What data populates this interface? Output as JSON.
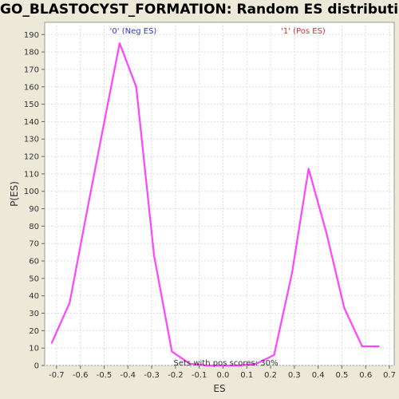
{
  "chart_data": {
    "type": "line",
    "title": "GO_BLASTOCYST_FORMATION: Random ES distribution",
    "xlabel": "ES",
    "ylabel": "P(ES)",
    "xlim": [
      -0.75,
      0.72
    ],
    "ylim": [
      0,
      197
    ],
    "x_ticks": [
      -0.7,
      -0.6,
      -0.5,
      -0.4,
      -0.3,
      -0.2,
      -0.1,
      0.0,
      0.1,
      0.2,
      0.3,
      0.4,
      0.5,
      0.6,
      0.7
    ],
    "y_ticks": [
      0,
      10,
      20,
      30,
      40,
      50,
      60,
      70,
      80,
      90,
      100,
      110,
      120,
      130,
      140,
      150,
      160,
      170,
      180,
      190
    ],
    "x_tick_labels": [
      "-0.7",
      "-0.6",
      "-0.5",
      "-0.4",
      "-0.3",
      "-0.2",
      "-0.1",
      "0.0",
      "0.1",
      "0.2",
      "0.3",
      "0.4",
      "0.5",
      "0.6",
      "0.7"
    ],
    "y_tick_labels": [
      "0",
      "10",
      "20",
      "30",
      "40",
      "50",
      "60",
      "70",
      "80",
      "90",
      "100",
      "110",
      "120",
      "130",
      "140",
      "150",
      "160",
      "170",
      "180",
      "190"
    ],
    "grid": true,
    "series": [
      {
        "color": "#ff44ff",
        "x": [
          -0.72,
          -0.645,
          -0.57,
          -0.495,
          -0.435,
          -0.365,
          -0.29,
          -0.215,
          -0.14,
          -0.07,
          0.0,
          0.07,
          0.14,
          0.215,
          0.29,
          0.36,
          0.435,
          0.51,
          0.585,
          0.655
        ],
        "y": [
          13,
          36,
          90,
          143,
          185,
          160,
          63,
          8,
          1,
          0,
          0,
          0,
          1,
          6,
          53,
          113,
          76,
          33,
          11,
          11
        ]
      }
    ],
    "annotations": {
      "neg_label": "'0' (Neg ES)",
      "pos_label": "'1' (Pos ES)",
      "footer": "Sets with pos scores: 30%"
    },
    "colors": {
      "line": "#ff44ff",
      "neg_label": "#3333cc",
      "pos_label": "#cc3333",
      "plot_background": "#ffffff",
      "page_background": "#ece9d8"
    }
  }
}
